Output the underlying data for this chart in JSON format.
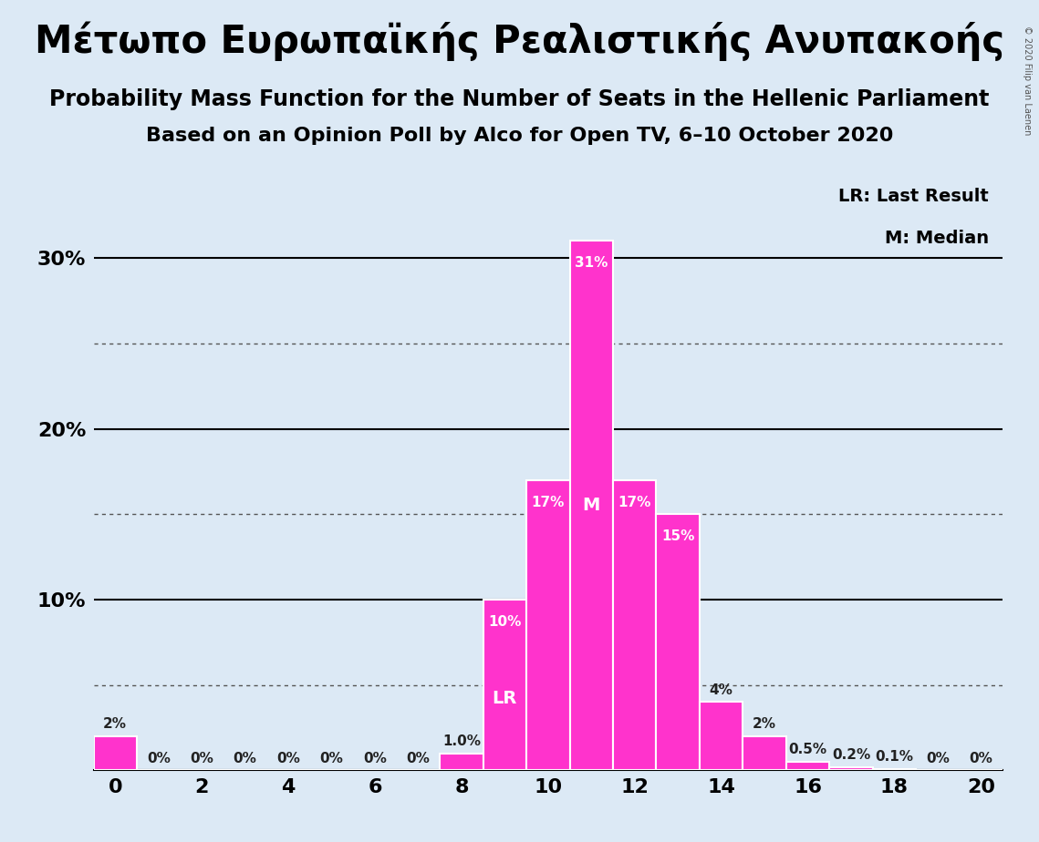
{
  "title1": "Μέτωπο Ευρωπαϊκής Ρεαλιστικής Ανυπακοής",
  "title2": "Probability Mass Function for the Number of Seats in the Hellenic Parliament",
  "title3": "Based on an Opinion Poll by Alco for Open TV, 6–10 October 2020",
  "copyright": "© 2020 Filip van Laenen",
  "seats": [
    0,
    1,
    2,
    3,
    4,
    5,
    6,
    7,
    8,
    9,
    10,
    11,
    12,
    13,
    14,
    15,
    16,
    17,
    18,
    19,
    20
  ],
  "probabilities": [
    0.02,
    0.0,
    0.0,
    0.0,
    0.0,
    0.0,
    0.0,
    0.0,
    0.01,
    0.1,
    0.17,
    0.31,
    0.17,
    0.15,
    0.04,
    0.02,
    0.005,
    0.002,
    0.001,
    0.0,
    0.0
  ],
  "labels": [
    "2%",
    "0%",
    "0%",
    "0%",
    "0%",
    "0%",
    "0%",
    "0%",
    "1.0%",
    "10%",
    "17%",
    "31%",
    "17%",
    "15%",
    "4%",
    "2%",
    "0.5%",
    "0.2%",
    "0.1%",
    "0%",
    "0%"
  ],
  "bar_color": "#FF33CC",
  "bar_edge_color": "white",
  "background_color": "#DCE9F5",
  "last_result_seat": 9,
  "median_seat": 11,
  "lr_label": "LR",
  "m_label": "M",
  "legend_lr": "LR: Last Result",
  "legend_m": "M: Median",
  "xticks": [
    0,
    2,
    4,
    6,
    8,
    10,
    12,
    14,
    16,
    18,
    20
  ],
  "title1_fontsize": 30,
  "title2_fontsize": 17,
  "title3_fontsize": 16,
  "label_fontsize": 11,
  "axis_fontsize": 16
}
